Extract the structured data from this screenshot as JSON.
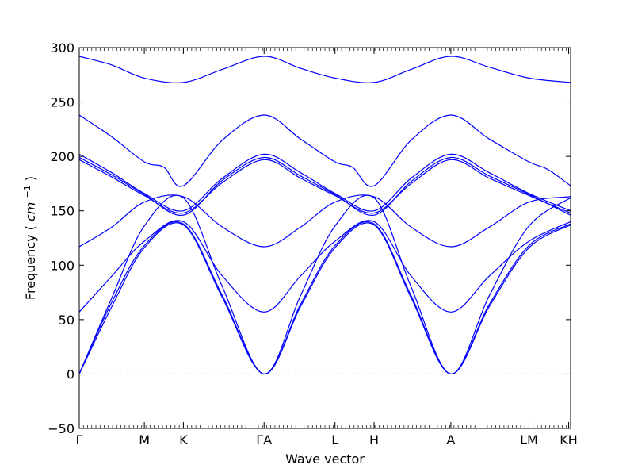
{
  "chart_data": {
    "type": "line",
    "title": "",
    "xlabel": "Wave vector",
    "ylabel": "Frequency",
    "ylabel_unit": "cm",
    "ylabel_unit_exp": "−1",
    "ylim": [
      -50,
      300
    ],
    "yticks": [
      -50,
      0,
      50,
      100,
      150,
      200,
      250,
      300
    ],
    "xlim": [
      0,
      7.55
    ],
    "grid": false,
    "legend": "none",
    "zero_line": true,
    "line_color": "#0000ff",
    "zero_line_color": "#555555",
    "k_points": [
      {
        "label": "Γ",
        "x": 0
      },
      {
        "label": "M",
        "x": 1.0
      },
      {
        "label": "K",
        "x": 1.6
      },
      {
        "label": "ΓA",
        "x": 2.84
      },
      {
        "label": "L",
        "x": 3.93
      },
      {
        "label": "H",
        "x": 4.53
      },
      {
        "label": "A",
        "x": 5.71
      },
      {
        "label": "LM",
        "x": 6.91
      },
      {
        "label": "KH",
        "x": 7.52
      }
    ],
    "series": [
      {
        "values": [
          [
            0,
            292
          ],
          [
            0.5,
            284
          ],
          [
            1.0,
            272
          ],
          [
            1.6,
            268
          ],
          [
            2.2,
            280
          ],
          [
            2.84,
            292
          ],
          [
            3.4,
            281
          ],
          [
            3.93,
            272
          ],
          [
            4.53,
            268
          ],
          [
            5.1,
            280
          ],
          [
            5.71,
            292
          ],
          [
            6.3,
            282
          ],
          [
            6.91,
            272
          ],
          [
            7.55,
            268
          ]
        ]
      },
      {
        "values": [
          [
            0,
            238
          ],
          [
            0.5,
            218
          ],
          [
            1.0,
            195
          ],
          [
            1.3,
            190
          ],
          [
            1.6,
            173
          ],
          [
            2.2,
            215
          ],
          [
            2.84,
            238
          ],
          [
            3.4,
            216
          ],
          [
            3.93,
            195
          ],
          [
            4.2,
            190
          ],
          [
            4.53,
            173
          ],
          [
            5.1,
            215
          ],
          [
            5.71,
            238
          ],
          [
            6.3,
            216
          ],
          [
            6.91,
            195
          ],
          [
            7.2,
            188
          ],
          [
            7.55,
            173
          ]
        ]
      },
      {
        "values": [
          [
            0,
            202
          ],
          [
            0.5,
            185
          ],
          [
            1.0,
            166
          ],
          [
            1.6,
            150
          ],
          [
            2.2,
            180
          ],
          [
            2.84,
            202
          ],
          [
            3.4,
            185
          ],
          [
            3.93,
            166
          ],
          [
            4.53,
            150
          ],
          [
            5.1,
            180
          ],
          [
            5.71,
            202
          ],
          [
            6.3,
            185
          ],
          [
            6.91,
            166
          ],
          [
            7.55,
            150
          ]
        ]
      },
      {
        "values": [
          [
            0,
            199
          ],
          [
            0.5,
            183
          ],
          [
            1.0,
            165
          ],
          [
            1.6,
            146
          ],
          [
            2.2,
            178
          ],
          [
            2.84,
            199
          ],
          [
            3.4,
            182
          ],
          [
            3.93,
            165
          ],
          [
            4.53,
            146
          ],
          [
            5.1,
            177
          ],
          [
            5.71,
            199
          ],
          [
            6.3,
            182
          ],
          [
            6.91,
            165
          ],
          [
            7.55,
            146
          ]
        ]
      },
      {
        "values": [
          [
            0,
            197
          ],
          [
            0.5,
            181
          ],
          [
            1.0,
            164
          ],
          [
            1.6,
            148
          ],
          [
            2.2,
            176
          ],
          [
            2.84,
            197
          ],
          [
            3.4,
            180
          ],
          [
            3.93,
            164
          ],
          [
            4.53,
            148
          ],
          [
            5.1,
            175
          ],
          [
            5.71,
            197
          ],
          [
            6.3,
            180
          ],
          [
            6.91,
            164
          ],
          [
            7.55,
            148
          ]
        ]
      },
      {
        "values": [
          [
            0,
            117
          ],
          [
            0.5,
            135
          ],
          [
            1.0,
            158
          ],
          [
            1.6,
            163
          ],
          [
            2.2,
            135
          ],
          [
            2.84,
            117
          ],
          [
            3.4,
            135
          ],
          [
            3.93,
            158
          ],
          [
            4.53,
            163
          ],
          [
            5.1,
            135
          ],
          [
            5.71,
            117
          ],
          [
            6.3,
            135
          ],
          [
            6.91,
            158
          ],
          [
            7.55,
            163
          ]
        ]
      },
      {
        "values": [
          [
            0,
            0
          ],
          [
            0.5,
            70
          ],
          [
            1.0,
            136
          ],
          [
            1.6,
            162
          ],
          [
            2.2,
            80
          ],
          [
            2.84,
            0
          ],
          [
            3.4,
            72
          ],
          [
            3.93,
            136
          ],
          [
            4.53,
            162
          ],
          [
            5.1,
            80
          ],
          [
            5.71,
            0
          ],
          [
            6.3,
            72
          ],
          [
            6.91,
            136
          ],
          [
            7.55,
            162
          ]
        ]
      },
      {
        "values": [
          [
            0,
            57
          ],
          [
            0.5,
            90
          ],
          [
            1.0,
            122
          ],
          [
            1.6,
            140
          ],
          [
            2.2,
            90
          ],
          [
            2.84,
            57
          ],
          [
            3.4,
            90
          ],
          [
            3.93,
            122
          ],
          [
            4.53,
            140
          ],
          [
            5.1,
            90
          ],
          [
            5.71,
            57
          ],
          [
            6.3,
            90
          ],
          [
            6.91,
            122
          ],
          [
            7.55,
            140
          ]
        ]
      },
      {
        "values": [
          [
            0,
            0
          ],
          [
            0.5,
            62
          ],
          [
            1.0,
            116
          ],
          [
            1.6,
            137
          ],
          [
            2.2,
            70
          ],
          [
            2.84,
            0
          ],
          [
            3.4,
            62
          ],
          [
            3.93,
            116
          ],
          [
            4.53,
            137
          ],
          [
            5.1,
            70
          ],
          [
            5.71,
            0
          ],
          [
            6.3,
            62
          ],
          [
            6.91,
            116
          ],
          [
            7.55,
            137
          ]
        ]
      },
      {
        "values": [
          [
            0,
            0
          ],
          [
            0.5,
            66
          ],
          [
            1.0,
            118
          ],
          [
            1.6,
            138
          ],
          [
            2.2,
            72
          ],
          [
            2.84,
            0
          ],
          [
            3.4,
            64
          ],
          [
            3.93,
            118
          ],
          [
            4.53,
            138
          ],
          [
            5.1,
            72
          ],
          [
            5.71,
            0
          ],
          [
            6.3,
            64
          ],
          [
            6.91,
            118
          ],
          [
            7.55,
            138
          ]
        ]
      }
    ]
  }
}
